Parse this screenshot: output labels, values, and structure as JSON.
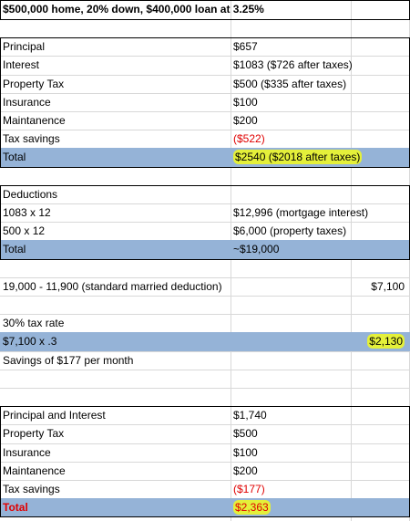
{
  "header": {
    "title": "$500,000 home, 20% down, $400,000 loan at 3.25%"
  },
  "table1": {
    "rows": [
      [
        "Principal",
        "$657"
      ],
      [
        "Interest",
        "$1083 ($726 after taxes)"
      ],
      [
        "Property Tax",
        "$500 ($335 after taxes)"
      ],
      [
        "Insurance",
        "$100"
      ],
      [
        "Maintanence",
        "$200"
      ],
      [
        "Tax savings",
        "($522)"
      ],
      [
        "Total",
        "$2540 ($2018 after taxes)"
      ]
    ]
  },
  "table2": {
    "rows": [
      [
        "Deductions"
      ],
      [
        "1083 x 12",
        "$12,996 (mortgage interest)"
      ],
      [
        "500 x 12",
        "$6,000 (property taxes)"
      ],
      [
        "Total",
        "~$19,000"
      ]
    ]
  },
  "calculation": {
    "rows": [
      [
        "19,000 - 11,900 (standard married deduction)",
        "$7,100"
      ],
      [
        "30% tax rate"
      ],
      [
        "$7,100 x .3",
        "$2,130"
      ],
      [
        "Savings of $177 per month"
      ]
    ]
  },
  "table3": {
    "rows": [
      [
        "Principal and Interest",
        "$1,740"
      ],
      [
        "Property Tax",
        "$500"
      ],
      [
        "Insurance",
        "$100"
      ],
      [
        "Maintanence",
        "$200"
      ],
      [
        "Tax savings",
        "($177)"
      ],
      [
        "Total",
        "$2,363"
      ]
    ]
  }
}
